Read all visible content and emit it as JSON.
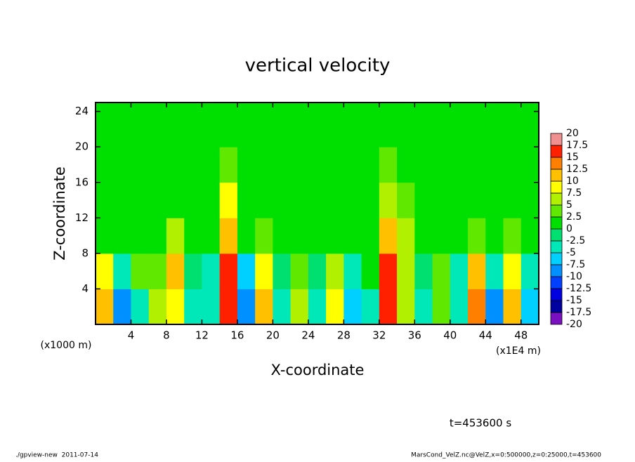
{
  "chart_data": {
    "type": "heatmap",
    "title": "vertical velocity",
    "xlabel": "X-coordinate",
    "ylabel": "Z-coordinate",
    "x_unit": "(x1E4 m)",
    "y_unit": "(x1000 m)",
    "time_label": "t=453600 s",
    "footer_left": "./gpview-new  2011-07-14",
    "footer_right": "MarsCond_VelZ.nc@VelZ,x=0:500000,z=0:25000,t=453600",
    "xlim": [
      0,
      50
    ],
    "ylim": [
      0,
      25
    ],
    "xticks": [
      4,
      8,
      12,
      16,
      20,
      24,
      28,
      32,
      36,
      40,
      44,
      48
    ],
    "yticks": [
      4,
      8,
      12,
      16,
      20,
      24
    ],
    "x": [
      1,
      3,
      5,
      7,
      9,
      11,
      13,
      15,
      17,
      19,
      21,
      23,
      25,
      27,
      29,
      31,
      33,
      35,
      37,
      39,
      41,
      43,
      45,
      47,
      49
    ],
    "y": [
      2,
      6,
      10,
      14,
      18,
      22
    ],
    "values": [
      [
        12,
        8,
        2,
        1,
        0,
        0
      ],
      [
        -10,
        -5,
        0,
        0,
        0,
        0
      ],
      [
        -5,
        3,
        1,
        0,
        0,
        0
      ],
      [
        6,
        4,
        2,
        1,
        0,
        0
      ],
      [
        8,
        10,
        6,
        2,
        1,
        0
      ],
      [
        -3,
        -2,
        0,
        1,
        0,
        0
      ],
      [
        -5,
        -3,
        1,
        0,
        0,
        0
      ],
      [
        17,
        16,
        12,
        8,
        3,
        1
      ],
      [
        -10,
        -6,
        0,
        1,
        0,
        0
      ],
      [
        10,
        8,
        3,
        1,
        0,
        0
      ],
      [
        -4,
        -2,
        0,
        0,
        0,
        0
      ],
      [
        6,
        4,
        2,
        1,
        0,
        0
      ],
      [
        -5,
        -2,
        0,
        0,
        0,
        0
      ],
      [
        8,
        6,
        2,
        1,
        0,
        0
      ],
      [
        -6,
        -3,
        0,
        0,
        0,
        0
      ],
      [
        -3,
        2,
        1,
        0,
        0,
        0
      ],
      [
        16,
        15,
        10,
        6,
        3,
        2
      ],
      [
        5,
        6,
        5,
        3,
        2,
        1
      ],
      [
        -4,
        -2,
        1,
        0,
        0,
        0
      ],
      [
        3,
        4,
        2,
        1,
        0,
        0
      ],
      [
        -5,
        -3,
        0,
        0,
        0,
        0
      ],
      [
        14,
        12,
        4,
        1,
        0,
        0
      ],
      [
        -8,
        -4,
        0,
        0,
        0,
        0
      ],
      [
        10,
        8,
        3,
        1,
        0,
        0
      ],
      [
        -6,
        -3,
        0,
        0,
        0,
        0
      ]
    ],
    "colorbar": {
      "levels": [
        -20,
        -17.5,
        -15,
        -12.5,
        -10,
        -7.5,
        -5,
        -2.5,
        0,
        2.5,
        5,
        7.5,
        10,
        12.5,
        15,
        17.5,
        20
      ],
      "colors": [
        "#7a10c0",
        "#0000a0",
        "#0000e0",
        "#0040ff",
        "#0090ff",
        "#00d0ff",
        "#00e8b8",
        "#00e070",
        "#00e000",
        "#60e800",
        "#b0f000",
        "#ffff00",
        "#ffc000",
        "#ff8000",
        "#ff2000",
        "#f09090"
      ]
    }
  }
}
